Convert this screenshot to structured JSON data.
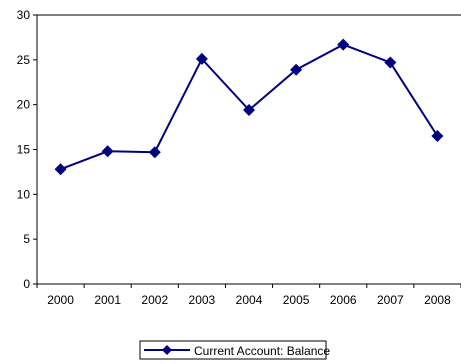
{
  "chart_data": {
    "type": "line",
    "title": "",
    "xlabel": "",
    "ylabel": "",
    "categories": [
      "2000",
      "2001",
      "2002",
      "2003",
      "2004",
      "2005",
      "2006",
      "2007",
      "2008"
    ],
    "ylim": [
      0,
      30
    ],
    "yticks": [
      0,
      5,
      10,
      15,
      20,
      25,
      30
    ],
    "grid": false,
    "legend_position": "bottom",
    "series": [
      {
        "name": "Current Account: Balance",
        "color": "#000080",
        "marker": "diamond",
        "values": [
          12.8,
          14.8,
          14.7,
          25.1,
          19.4,
          23.9,
          26.7,
          24.7,
          16.5
        ]
      }
    ]
  }
}
